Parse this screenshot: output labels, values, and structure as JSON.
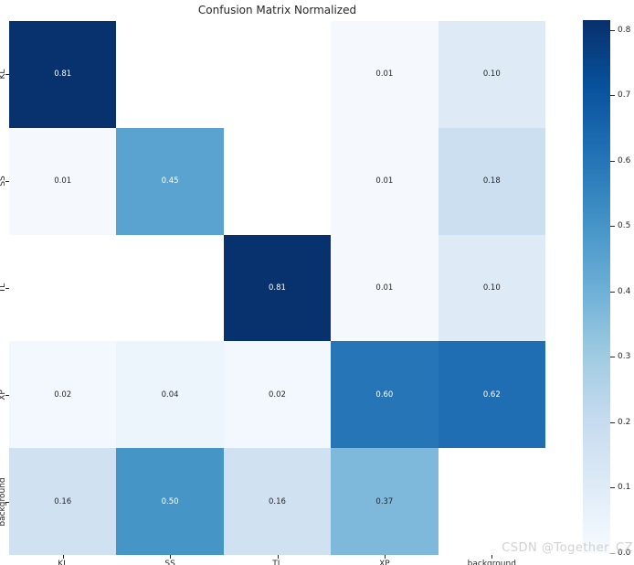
{
  "title": "Confusion Matrix Normalized",
  "watermark": "CSDN @Together_CZ",
  "colors": {
    "cmap_high": "#08306b",
    "cmap_low": "#f7fbff",
    "annot_dark": "#262626",
    "annot_light": "#ffffff",
    "axis_text": "#262626",
    "watermark_gray": "#c9c9c9",
    "nan_cell": "#ffffff"
  },
  "chart_data": {
    "type": "heatmap",
    "title": "Confusion Matrix Normalized",
    "x_categories": [
      "KL",
      "SS",
      "TL",
      "XP",
      "background"
    ],
    "y_categories": [
      "KL",
      "SS",
      "TL",
      "XP",
      "background"
    ],
    "matrix": [
      [
        0.81,
        null,
        null,
        0.01,
        0.1
      ],
      [
        0.01,
        0.45,
        null,
        0.01,
        0.18
      ],
      [
        null,
        null,
        0.81,
        0.01,
        0.1
      ],
      [
        0.02,
        0.04,
        0.02,
        0.6,
        0.62
      ],
      [
        0.16,
        0.5,
        0.16,
        0.37,
        null
      ]
    ],
    "value_format_decimals": 2,
    "colormap": "Blues",
    "vmin": 0.0,
    "vmax": 0.815,
    "colorbar_tick_values": [
      0.8,
      0.7,
      0.6,
      0.5,
      0.4,
      0.3,
      0.2,
      0.1,
      0.0
    ],
    "colorbar_tick_labels": [
      "0.8",
      "0.7",
      "0.6",
      "0.5",
      "0.4",
      "0.3",
      "0.2",
      "0.1",
      "0.0"
    ],
    "legend_position": "right-colorbar",
    "grid": false
  }
}
